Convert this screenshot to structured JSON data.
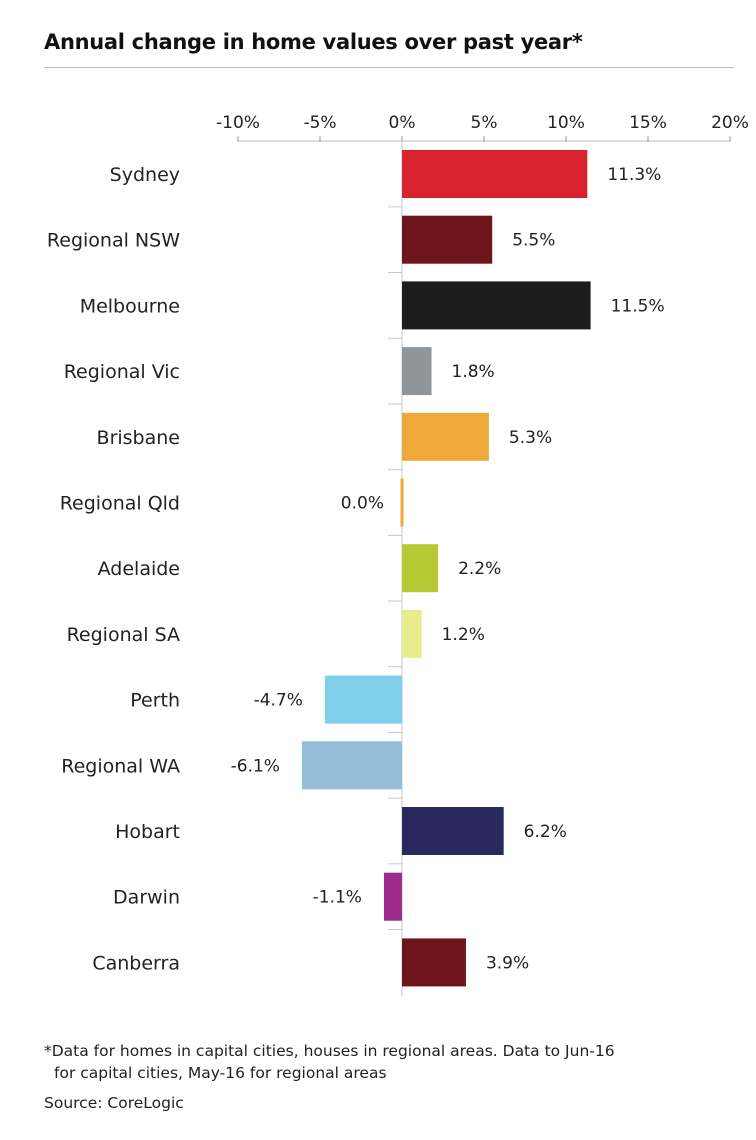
{
  "chart_data": {
    "type": "bar",
    "orientation": "horizontal",
    "title": "Annual change in home values over past year*",
    "xlabel": "",
    "ylabel": "",
    "xlim": [
      -10,
      20
    ],
    "x_ticks": [
      -10,
      -5,
      0,
      5,
      10,
      15,
      20
    ],
    "x_tick_labels": [
      "-10%",
      "-5%",
      "0%",
      "5%",
      "10%",
      "15%",
      "20%"
    ],
    "grid": false,
    "legend": "none",
    "categories": [
      "Sydney",
      "Regional NSW",
      "Melbourne",
      "Regional Vic",
      "Brisbane",
      "Regional Qld",
      "Adelaide",
      "Regional SA",
      "Perth",
      "Regional WA",
      "Hobart",
      "Darwin",
      "Canberra"
    ],
    "values": [
      11.3,
      5.5,
      11.5,
      1.8,
      5.3,
      0.0,
      2.2,
      1.2,
      -4.7,
      -6.1,
      6.2,
      -1.1,
      3.9
    ],
    "value_labels": [
      "11.3%",
      "5.5%",
      "11.5%",
      "1.8%",
      "5.3%",
      "0.0%",
      "2.2%",
      "1.2%",
      "-4.7%",
      "-6.1%",
      "6.2%",
      "-1.1%",
      "3.9%"
    ],
    "colors": [
      "#d8232f",
      "#6e141b",
      "#1c1c1c",
      "#8f969a",
      "#efa93a",
      "#efa93a",
      "#b6c932",
      "#e9ec8c",
      "#7fcfea",
      "#94bdd6",
      "#29285f",
      "#9b2b8d",
      "#6e141b"
    ]
  },
  "footnote": {
    "line1": "*Data for homes in capital cities, houses in regional areas. Data to Jun-16",
    "line2": "for capital cities, May-16 for regional areas"
  },
  "source": "Source: CoreLogic"
}
